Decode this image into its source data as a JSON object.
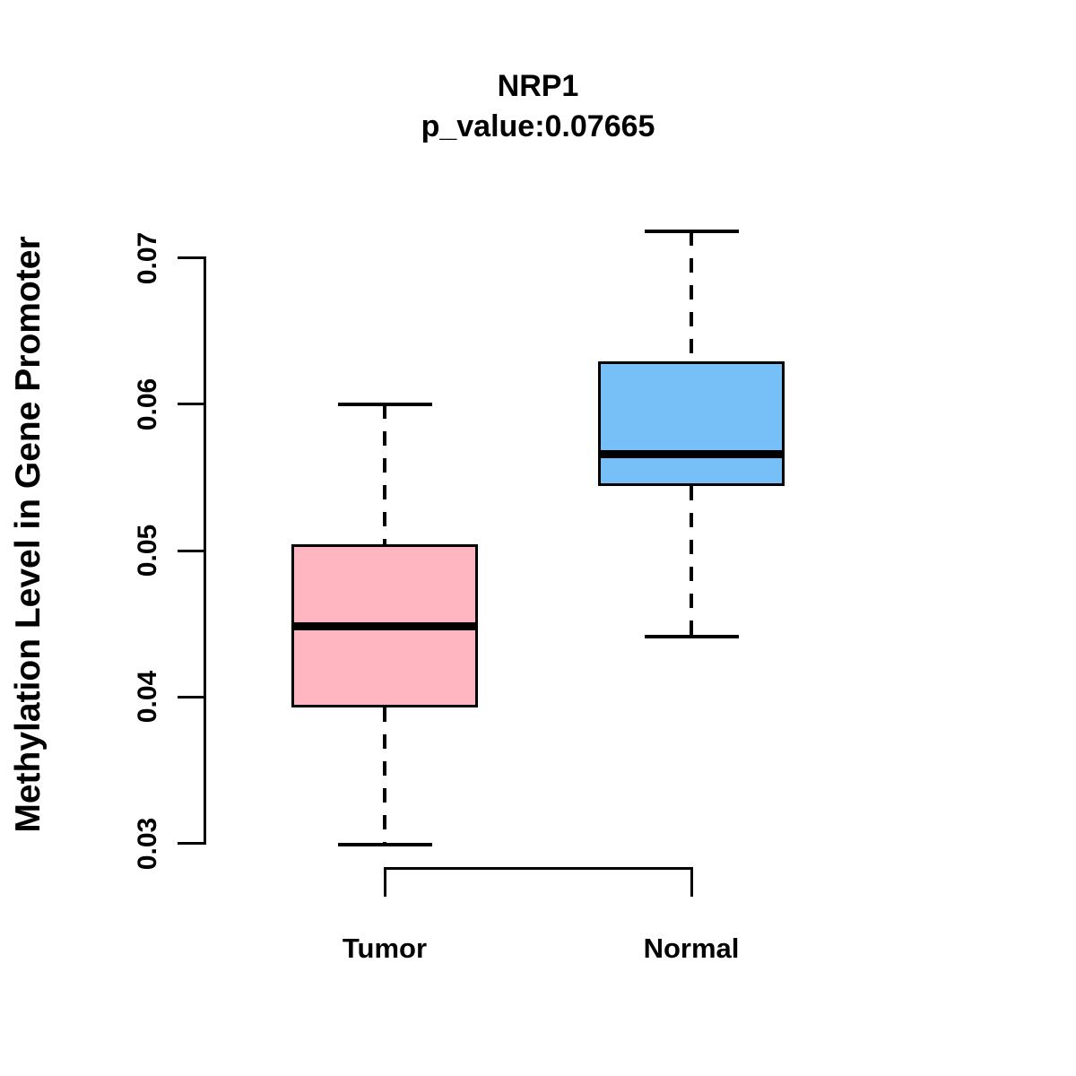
{
  "chart_data": {
    "type": "boxplot",
    "title": "NRP1",
    "subtitle": "p_value:0.07665",
    "gene": "NRP1",
    "p_value": 0.07665,
    "ylabel": "Methylation Level in Gene Promoter",
    "xlabel": "",
    "categories": [
      "Tumor",
      "Normal"
    ],
    "yticks": [
      "0.03",
      "0.04",
      "0.05",
      "0.06",
      "0.07"
    ],
    "ylim": [
      0.0297,
      0.0718
    ],
    "grid": false,
    "legend": false,
    "axis_color": "#000000",
    "series": [
      {
        "name": "Tumor",
        "color": "#FFB6C1",
        "border_color": "#000000",
        "stats": {
          "lower_whisker": 0.0299,
          "q1": 0.0393,
          "median": 0.0448,
          "q3": 0.0504,
          "upper_whisker": 0.06
        }
      },
      {
        "name": "Normal",
        "color": "#77C0F7",
        "border_color": "#000000",
        "stats": {
          "lower_whisker": 0.0441,
          "q1": 0.0544,
          "median": 0.0566,
          "q3": 0.0629,
          "upper_whisker": 0.0718
        }
      }
    ]
  }
}
